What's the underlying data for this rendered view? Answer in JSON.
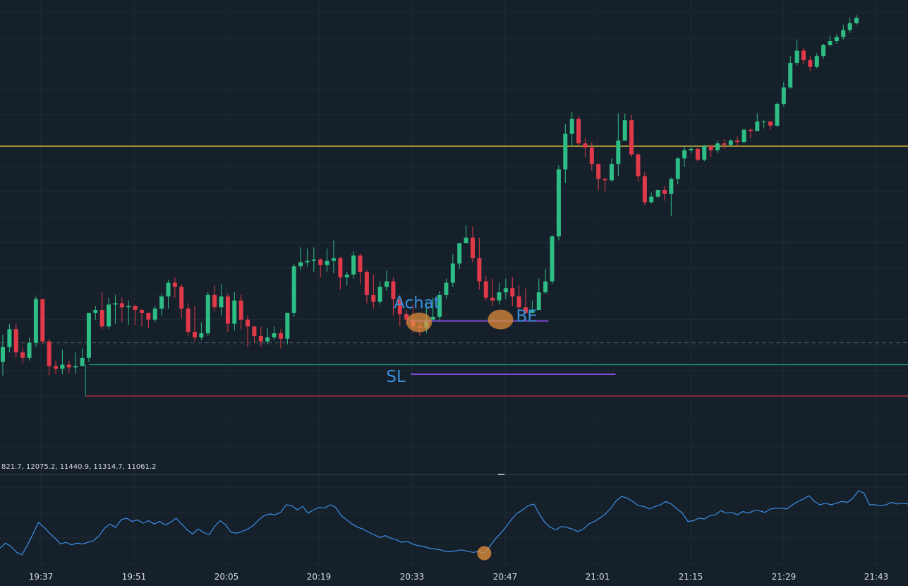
{
  "chart_data": [
    {
      "type": "candlestick",
      "x_ticks": [
        "19:37",
        "19:51",
        "20:05",
        "20:19",
        "20:33",
        "20:47",
        "21:01",
        "21:15",
        "21:29",
        "21:43"
      ],
      "candles": [
        [
          3.5,
          4.6,
          5.5,
          2.5
        ],
        [
          4.6,
          5.9,
          6.3,
          4.2
        ],
        [
          5.9,
          4.2,
          6.3,
          3.8
        ],
        [
          4.2,
          3.8,
          4.6,
          3.4
        ],
        [
          3.8,
          4.9,
          5.3,
          3.6
        ],
        [
          4.9,
          8.1,
          8.3,
          4.6
        ],
        [
          8.1,
          5.0,
          8.1,
          4.8
        ],
        [
          5.0,
          3.2,
          5.2,
          2.5
        ],
        [
          3.2,
          3.0,
          3.6,
          2.6
        ],
        [
          3.0,
          3.3,
          4.4,
          2.6
        ],
        [
          3.3,
          3.1,
          3.6,
          2.7
        ],
        [
          3.1,
          3.2,
          4.2,
          2.6
        ],
        [
          3.2,
          3.8,
          4.5,
          3.4
        ],
        [
          3.8,
          7.1,
          7.1,
          3.5
        ],
        [
          7.1,
          7.3,
          7.6,
          6.6
        ],
        [
          7.3,
          6.1,
          8.6,
          5.9
        ],
        [
          6.1,
          7.7,
          8.2,
          5.9
        ],
        [
          7.7,
          7.8,
          8.4,
          6.3
        ],
        [
          7.8,
          7.5,
          8.2,
          6.4
        ],
        [
          7.5,
          7.6,
          8.0,
          6.2
        ],
        [
          7.6,
          7.3,
          7.7,
          6.2
        ],
        [
          7.3,
          7.1,
          7.4,
          6.1
        ],
        [
          7.1,
          6.6,
          7.0,
          6.0
        ],
        [
          6.6,
          7.4,
          7.6,
          6.4
        ],
        [
          7.4,
          8.3,
          8.5,
          6.9
        ],
        [
          8.3,
          9.3,
          9.5,
          7.4
        ],
        [
          9.3,
          9.0,
          9.7,
          8.2
        ],
        [
          9.0,
          7.4,
          9.2,
          6.7
        ],
        [
          7.4,
          5.7,
          7.8,
          5.4
        ],
        [
          5.7,
          5.3,
          7.6,
          5.0
        ],
        [
          5.3,
          5.6,
          6.4,
          5.1
        ],
        [
          5.6,
          8.4,
          8.6,
          5.4
        ],
        [
          8.4,
          7.5,
          9.1,
          7.2
        ],
        [
          7.5,
          8.3,
          9.2,
          6.9
        ],
        [
          8.3,
          6.3,
          8.5,
          5.7
        ],
        [
          6.3,
          8.0,
          8.6,
          5.8
        ],
        [
          8.0,
          6.6,
          8.4,
          5.9
        ],
        [
          6.6,
          6.1,
          6.9,
          4.6
        ],
        [
          6.1,
          5.4,
          5.9,
          4.9
        ],
        [
          5.4,
          5.0,
          6.1,
          4.6
        ],
        [
          5.0,
          5.3,
          6.0,
          4.8
        ],
        [
          5.3,
          5.6,
          6.1,
          5.1
        ],
        [
          5.6,
          5.2,
          5.9,
          4.5
        ],
        [
          5.2,
          7.1,
          7.1,
          4.8
        ],
        [
          7.1,
          10.5,
          10.7,
          6.8
        ],
        [
          10.5,
          10.8,
          11.9,
          10.2
        ],
        [
          10.8,
          10.9,
          11.8,
          10.5
        ],
        [
          10.9,
          11.0,
          11.9,
          10.1
        ],
        [
          11.0,
          10.6,
          11.1,
          9.7
        ],
        [
          10.6,
          10.9,
          11.8,
          10.1
        ],
        [
          10.9,
          11.1,
          12.4,
          10.0
        ],
        [
          11.1,
          9.7,
          11.2,
          8.8
        ],
        [
          9.7,
          9.9,
          10.1,
          9.1
        ],
        [
          9.9,
          11.3,
          11.6,
          9.6
        ],
        [
          11.3,
          10.1,
          11.4,
          9.2
        ],
        [
          10.1,
          8.4,
          10.2,
          7.8
        ],
        [
          8.4,
          7.9,
          9.9,
          7.4
        ],
        [
          7.9,
          9.0,
          9.4,
          7.7
        ],
        [
          9.0,
          9.4,
          10.2,
          8.7
        ],
        [
          9.4,
          8.1,
          9.7,
          6.9
        ],
        [
          8.1,
          7.0,
          8.4,
          6.1
        ],
        [
          7.0,
          6.6,
          7.3,
          6.2
        ],
        [
          6.6,
          6.1,
          7.7,
          5.6
        ],
        [
          6.1,
          6.0,
          6.5,
          5.4
        ],
        [
          6.0,
          6.6,
          7.9,
          5.6
        ],
        [
          6.6,
          6.8,
          8.2,
          6.5
        ],
        [
          6.8,
          8.4,
          8.7,
          6.4
        ],
        [
          8.4,
          9.3,
          9.6,
          8.1
        ],
        [
          9.3,
          10.7,
          11.4,
          9.0
        ],
        [
          10.7,
          12.2,
          12.2,
          10.3
        ],
        [
          12.2,
          12.6,
          13.5,
          12.3
        ],
        [
          12.6,
          11.1,
          13.4,
          10.8
        ],
        [
          11.1,
          9.4,
          12.6,
          8.8
        ],
        [
          9.4,
          8.2,
          9.8,
          8.0
        ],
        [
          8.2,
          8.0,
          9.6,
          7.6
        ],
        [
          8.0,
          8.6,
          9.3,
          7.7
        ],
        [
          8.6,
          8.9,
          9.6,
          8.1
        ],
        [
          8.9,
          8.3,
          9.7,
          7.6
        ],
        [
          8.3,
          7.5,
          9.1,
          7.3
        ],
        [
          7.5,
          7.1,
          8.9,
          7.0
        ],
        [
          7.1,
          7.3,
          8.0,
          7.2
        ],
        [
          7.3,
          8.6,
          9.6,
          7.5
        ],
        [
          8.6,
          9.4,
          10.3,
          8.5
        ],
        [
          9.4,
          12.7,
          12.8,
          9.2
        ],
        [
          12.7,
          17.6,
          17.9,
          12.4
        ],
        [
          17.6,
          20.2,
          20.9,
          16.6
        ],
        [
          20.2,
          21.3,
          21.8,
          19.3
        ],
        [
          21.3,
          19.5,
          21.5,
          19.4
        ],
        [
          19.5,
          19.2,
          19.9,
          18.5
        ],
        [
          19.2,
          18.0,
          19.6,
          17.5
        ],
        [
          18.0,
          16.9,
          17.9,
          16.1
        ],
        [
          16.9,
          16.8,
          17.0,
          16.0
        ],
        [
          16.8,
          18.0,
          18.4,
          16.7
        ],
        [
          18.0,
          19.7,
          21.7,
          17.1
        ],
        [
          19.7,
          21.2,
          21.7,
          20.4
        ],
        [
          21.2,
          18.7,
          21.6,
          18.5
        ],
        [
          18.7,
          17.1,
          18.8,
          16.7
        ],
        [
          17.1,
          15.2,
          17.4,
          15.0
        ],
        [
          15.2,
          15.6,
          15.9,
          15.1
        ],
        [
          15.6,
          16.1,
          16.1,
          15.5
        ],
        [
          16.1,
          15.8,
          16.4,
          15.3
        ],
        [
          15.8,
          16.9,
          17.0,
          14.2
        ],
        [
          16.9,
          18.4,
          18.5,
          16.5
        ],
        [
          18.4,
          19.0,
          19.3,
          17.8
        ],
        [
          19.0,
          19.1,
          19.3,
          18.8
        ],
        [
          19.1,
          18.3,
          19.2,
          18.2
        ],
        [
          18.3,
          19.3,
          19.4,
          18.2
        ],
        [
          19.3,
          19.0,
          19.4,
          18.5
        ],
        [
          19.0,
          19.5,
          19.7,
          18.8
        ],
        [
          19.5,
          19.4,
          19.8,
          19.1
        ],
        [
          19.4,
          19.7,
          19.8,
          19.3
        ],
        [
          19.7,
          19.6,
          20.0,
          19.3
        ],
        [
          19.6,
          20.5,
          20.6,
          19.5
        ],
        [
          20.5,
          20.4,
          20.6,
          19.9
        ],
        [
          20.4,
          21.1,
          21.7,
          20.4
        ],
        [
          21.1,
          21.1,
          21.2,
          20.6
        ],
        [
          21.1,
          20.8,
          21.1,
          20.5
        ],
        [
          20.8,
          22.4,
          22.5,
          20.7
        ],
        [
          22.4,
          23.6,
          24.0,
          22.2
        ],
        [
          23.6,
          25.4,
          25.9,
          23.5
        ],
        [
          25.4,
          26.3,
          27.1,
          25.2
        ],
        [
          26.3,
          25.6,
          26.5,
          25.3
        ],
        [
          25.6,
          25.1,
          25.9,
          24.8
        ],
        [
          25.1,
          25.9,
          26.1,
          25.0
        ],
        [
          25.9,
          26.7,
          26.8,
          25.7
        ],
        [
          26.7,
          27.0,
          27.4,
          26.6
        ],
        [
          27.0,
          27.3,
          27.5,
          26.8
        ],
        [
          27.3,
          27.8,
          28.2,
          27.1
        ],
        [
          27.8,
          28.3,
          28.7,
          27.6
        ],
        [
          28.3,
          28.7,
          28.9,
          28.2
        ]
      ],
      "levels": {
        "resistance_yellow": 19.3,
        "reference_dashed": 4.9,
        "support_green": 3.3,
        "support_red": 1.0,
        "achat_line": 6.5,
        "sl_line": 2.6
      },
      "annotations": [
        {
          "text": "Achat",
          "candle": 61
        },
        {
          "text": "BE",
          "candle": 75
        },
        {
          "text": "SL",
          "candle": 59
        }
      ],
      "y_range": [
        -3.6,
        30
      ]
    },
    {
      "type": "line",
      "legend": "821.7, 12075.2, 11440.9, 11314.7, 11061.2",
      "series": [
        {
          "values": [
            2.0,
            2.6,
            2.2,
            1.5,
            1.2,
            2.4,
            3.7,
            5.1,
            4.5,
            3.8,
            3.2,
            2.5,
            2.7,
            2.4,
            2.6,
            2.5,
            2.7,
            2.9,
            3.5,
            4.4,
            4.9,
            4.5,
            5.4,
            5.6,
            5.2,
            5.4,
            5.0,
            5.3,
            4.9,
            5.2,
            4.8,
            5.1,
            5.6,
            4.9,
            4.2,
            3.7,
            4.3,
            3.9,
            3.6,
            4.6,
            5.3,
            4.8,
            3.9,
            3.8,
            4.0,
            4.3,
            4.7,
            5.4,
            5.9,
            6.1,
            6.0,
            6.3,
            7.2,
            7.1,
            6.6,
            7.0,
            6.2,
            6.6,
            6.9,
            6.8,
            7.2,
            6.9,
            5.9,
            5.4,
            4.9,
            4.5,
            4.3,
            3.9,
            3.6,
            3.3,
            3.5,
            3.2,
            3.0,
            2.7,
            2.8,
            2.5,
            2.3,
            2.2,
            2.0,
            1.9,
            1.8,
            1.6,
            1.6,
            1.7,
            1.8,
            1.6,
            1.5,
            1.6,
            1.4,
            2.2,
            3.1,
            3.8,
            4.6,
            5.5,
            6.2,
            6.6,
            7.1,
            7.3,
            6.1,
            5.1,
            4.5,
            4.2,
            4.6,
            4.5,
            4.3,
            4.0,
            4.3,
            4.9,
            5.2,
            5.6,
            6.1,
            6.8,
            7.7,
            8.2,
            8.0,
            7.6,
            7.1,
            7.0,
            6.7,
            7.0,
            7.2,
            7.6,
            7.3,
            6.7,
            6.2,
            5.2,
            5.3,
            5.6,
            5.5,
            5.9,
            6.0,
            6.5,
            6.2,
            6.3,
            6.0,
            6.4,
            6.2,
            6.5,
            6.5,
            6.3,
            6.7,
            6.8,
            6.8,
            6.7,
            7.2,
            7.6,
            7.9,
            8.3,
            7.6,
            7.2,
            7.4,
            7.2,
            7.4,
            7.6,
            7.5,
            8.0,
            8.9,
            8.6,
            7.2,
            7.2,
            7.1,
            7.2,
            7.5,
            7.3,
            7.4,
            7.3
          ]
        }
      ],
      "y_range": [
        0,
        10
      ]
    }
  ],
  "colors": {
    "background": "#16202a",
    "up": "#2ebd85",
    "down": "#e03a4a",
    "yellow_line": "#c9b13a",
    "support_line": "#1f9a7c",
    "red_line": "#c8303c",
    "marker_line": "#7c4bd1",
    "annotation_text": "#3a8fd8",
    "highlight": "#e8913a",
    "indicator_line": "#3a8fe6"
  }
}
